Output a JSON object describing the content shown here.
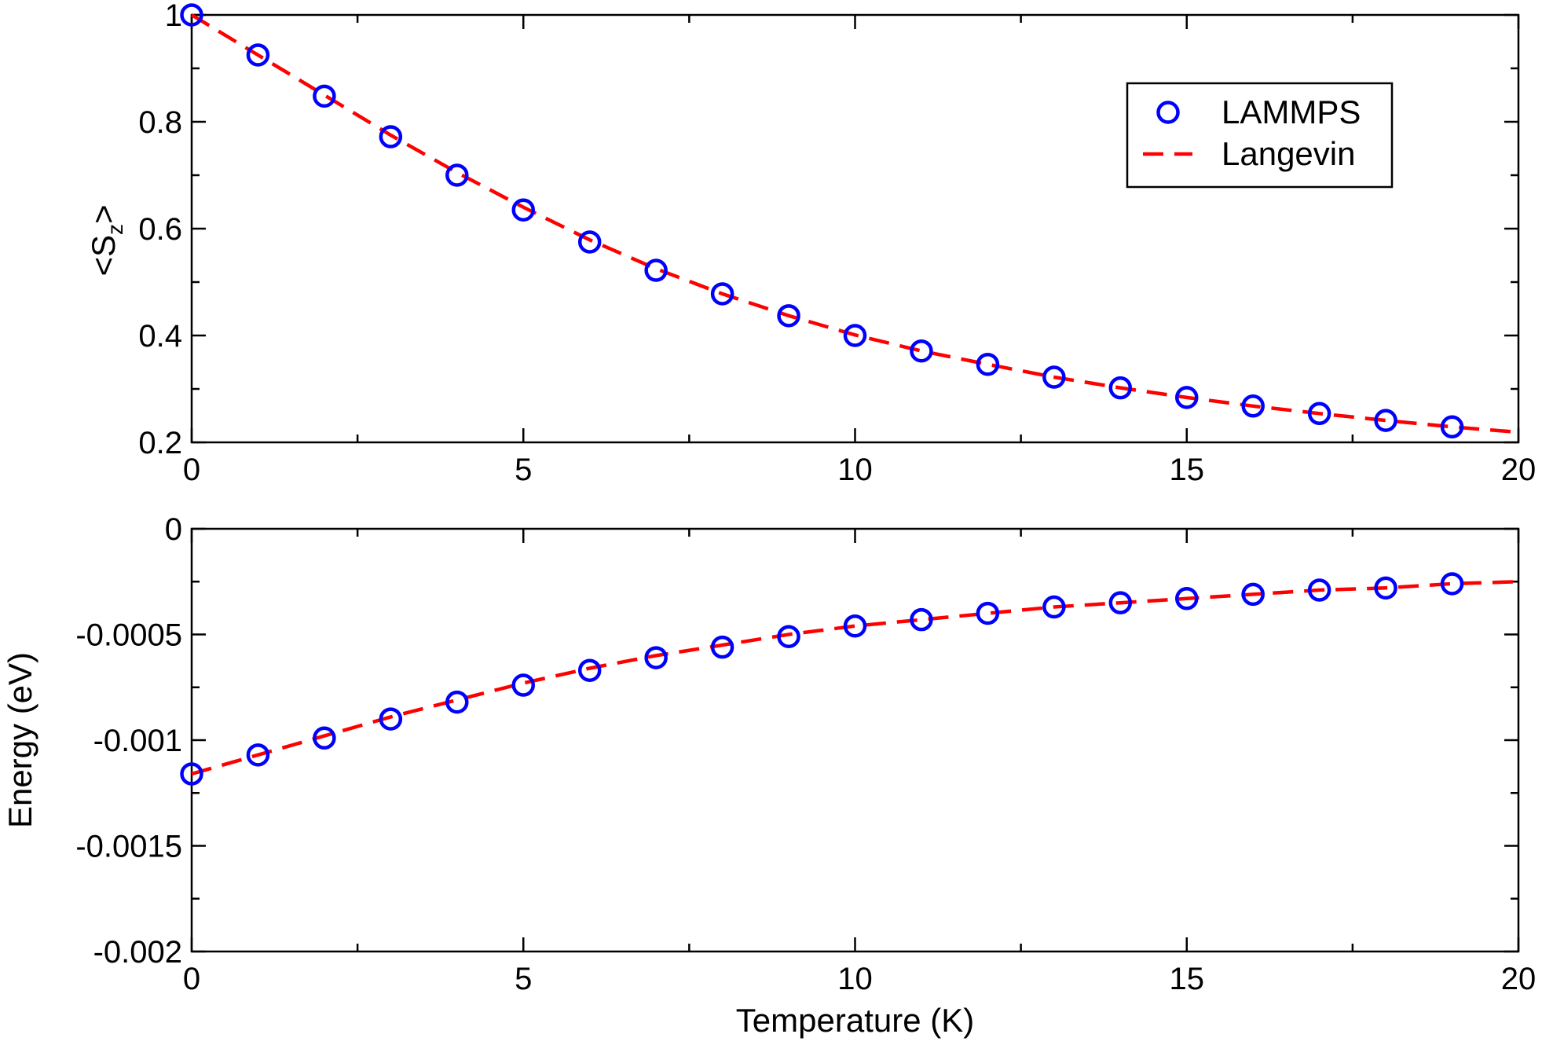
{
  "chart_data": [
    {
      "type": "scatter",
      "ylabel": {
        "prefix": "<S",
        "sub": "z",
        "suffix": ">"
      },
      "xlabel": "",
      "xlim": [
        0,
        20
      ],
      "ylim": [
        0.2,
        1
      ],
      "xticks": [
        "0",
        "5",
        "10",
        "15",
        "20"
      ],
      "yticks": [
        "0.2",
        "0.4",
        "0.6",
        "0.8",
        "1"
      ],
      "legend": {
        "position": "top-right",
        "entries": [
          "LAMMPS",
          "Langevin"
        ]
      },
      "series": [
        {
          "name": "LAMMPS",
          "style": "open-circle",
          "color": "#0000ff",
          "x": [
            0,
            1,
            2,
            3,
            4,
            5,
            6,
            7,
            8,
            9,
            10,
            11,
            12,
            13,
            14,
            15,
            16,
            17,
            18,
            19
          ],
          "y": [
            1.0,
            0.925,
            0.848,
            0.772,
            0.7,
            0.635,
            0.575,
            0.522,
            0.478,
            0.437,
            0.4,
            0.371,
            0.346,
            0.322,
            0.302,
            0.284,
            0.268,
            0.254,
            0.241,
            0.229
          ]
        },
        {
          "name": "Langevin",
          "style": "dashed-line",
          "color": "#ff0000",
          "x": [
            0,
            1,
            2,
            3,
            4,
            5,
            6,
            7,
            8,
            9,
            10,
            11,
            12,
            13,
            14,
            15,
            16,
            17,
            18,
            19,
            20
          ],
          "y": [
            1.0,
            0.925,
            0.85,
            0.775,
            0.705,
            0.64,
            0.579,
            0.525,
            0.478,
            0.437,
            0.401,
            0.371,
            0.346,
            0.322,
            0.302,
            0.284,
            0.268,
            0.254,
            0.241,
            0.229,
            0.219
          ]
        }
      ]
    },
    {
      "type": "scatter",
      "ylabel": "Energy (eV)",
      "xlabel": "Temperature (K)",
      "xlim": [
        0,
        20
      ],
      "ylim": [
        -0.002,
        0
      ],
      "xticks": [
        "0",
        "5",
        "10",
        "15",
        "20"
      ],
      "yticks": [
        "-0.002",
        "-0.0015",
        "-0.001",
        "-0.0005",
        "0"
      ],
      "series": [
        {
          "name": "LAMMPS",
          "style": "open-circle",
          "color": "#0000ff",
          "x": [
            0,
            1,
            2,
            3,
            4,
            5,
            6,
            7,
            8,
            9,
            10,
            11,
            12,
            13,
            14,
            15,
            16,
            17,
            18,
            19
          ],
          "y": [
            -0.00116,
            -0.00107,
            -0.00099,
            -0.0009,
            -0.00082,
            -0.00074,
            -0.00067,
            -0.00061,
            -0.00056,
            -0.00051,
            -0.00046,
            -0.00043,
            -0.0004,
            -0.00037,
            -0.00035,
            -0.00033,
            -0.00031,
            -0.00029,
            -0.00028,
            -0.00026
          ]
        },
        {
          "name": "Langevin",
          "style": "dashed-line",
          "color": "#ff0000",
          "x": [
            0,
            1,
            2,
            3,
            4,
            5,
            6,
            7,
            8,
            9,
            10,
            11,
            12,
            13,
            14,
            15,
            16,
            17,
            18,
            19,
            20
          ],
          "y": [
            -0.00116,
            -0.00107,
            -0.00098,
            -0.00089,
            -0.00081,
            -0.00073,
            -0.00066,
            -0.0006,
            -0.00055,
            -0.0005,
            -0.00046,
            -0.00043,
            -0.0004,
            -0.00037,
            -0.00035,
            -0.00033,
            -0.00031,
            -0.00029,
            -0.00028,
            -0.00026,
            -0.00025
          ]
        }
      ]
    }
  ]
}
